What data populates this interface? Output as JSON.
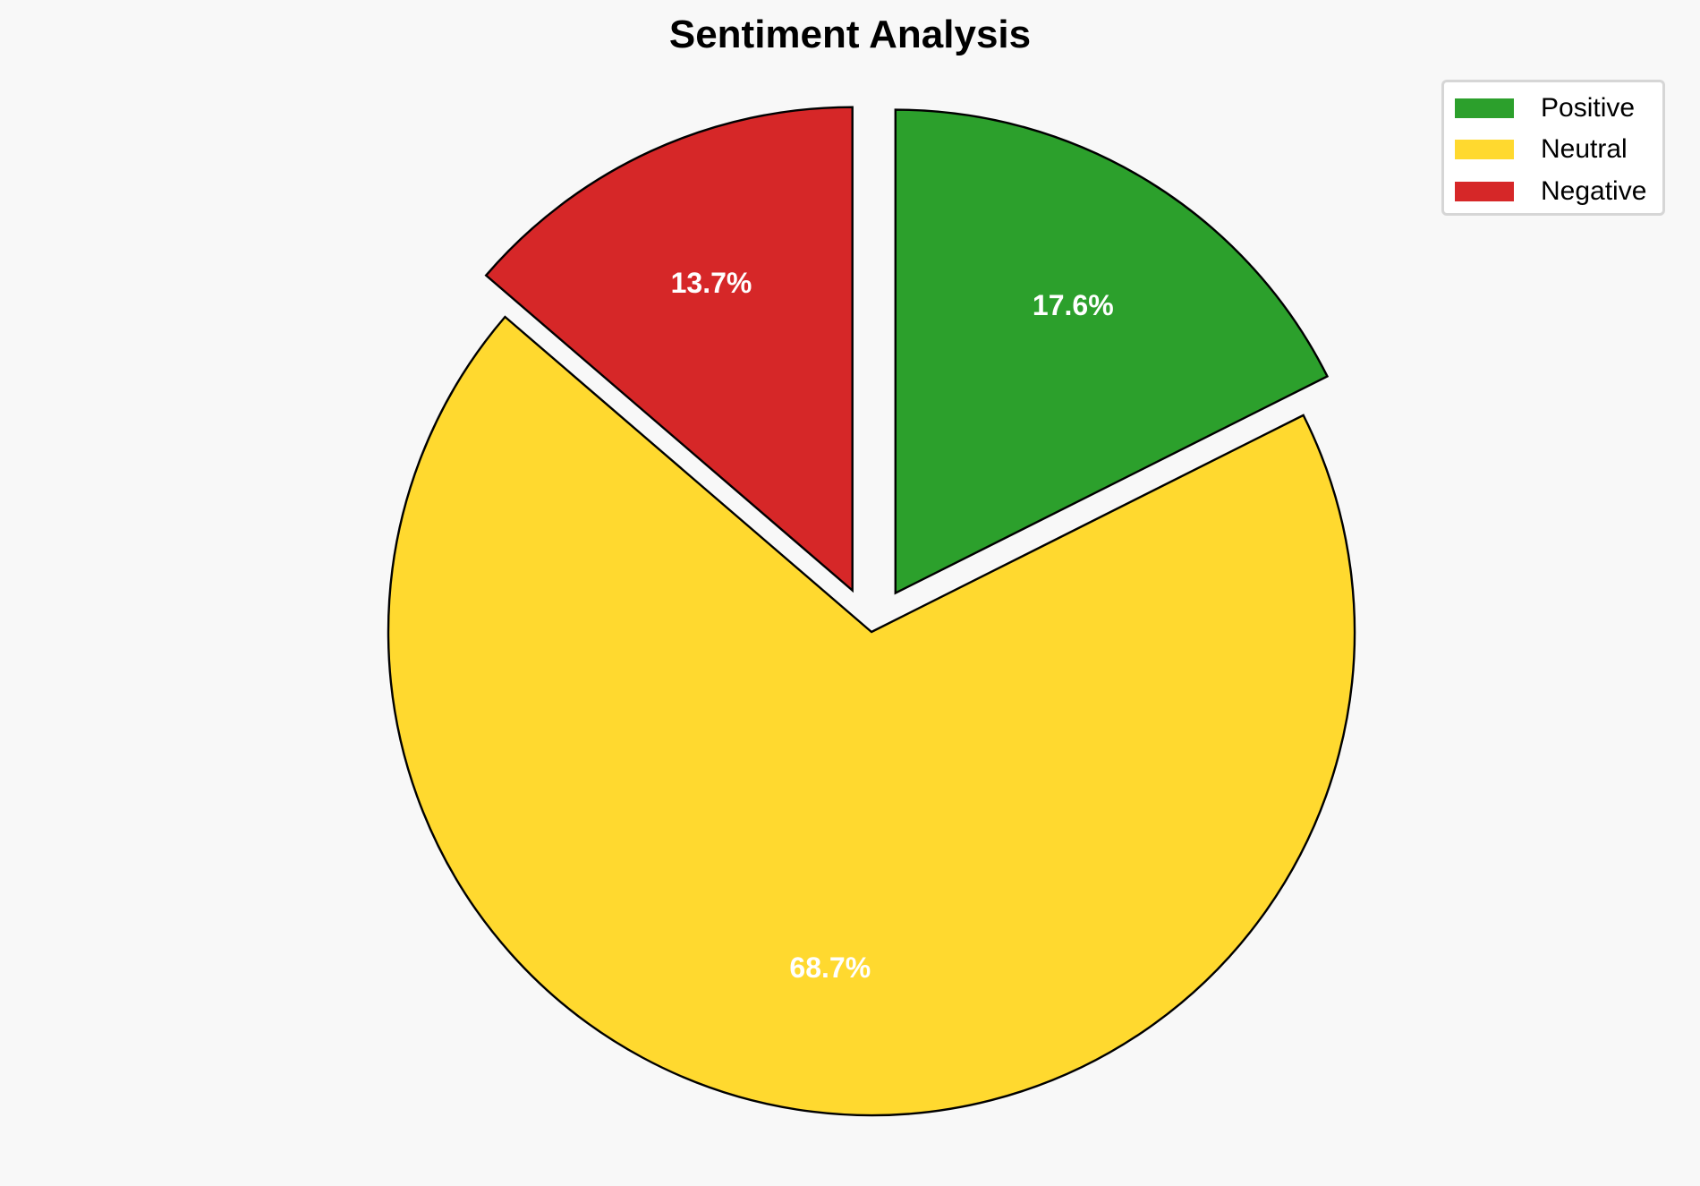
{
  "chart_data": {
    "type": "pie",
    "title": "Sentiment Analysis",
    "categories": [
      "Positive",
      "Neutral",
      "Negative"
    ],
    "values": [
      17.6,
      68.7,
      13.7
    ],
    "labels": [
      "17.6%",
      "68.7%",
      "13.7%"
    ],
    "colors": [
      "#2ca02c",
      "#ffd92f",
      "#d62728"
    ],
    "exploded": [
      true,
      false,
      true
    ],
    "start_angle": 90,
    "direction": "clockwise",
    "legend_placement": "top-right"
  }
}
